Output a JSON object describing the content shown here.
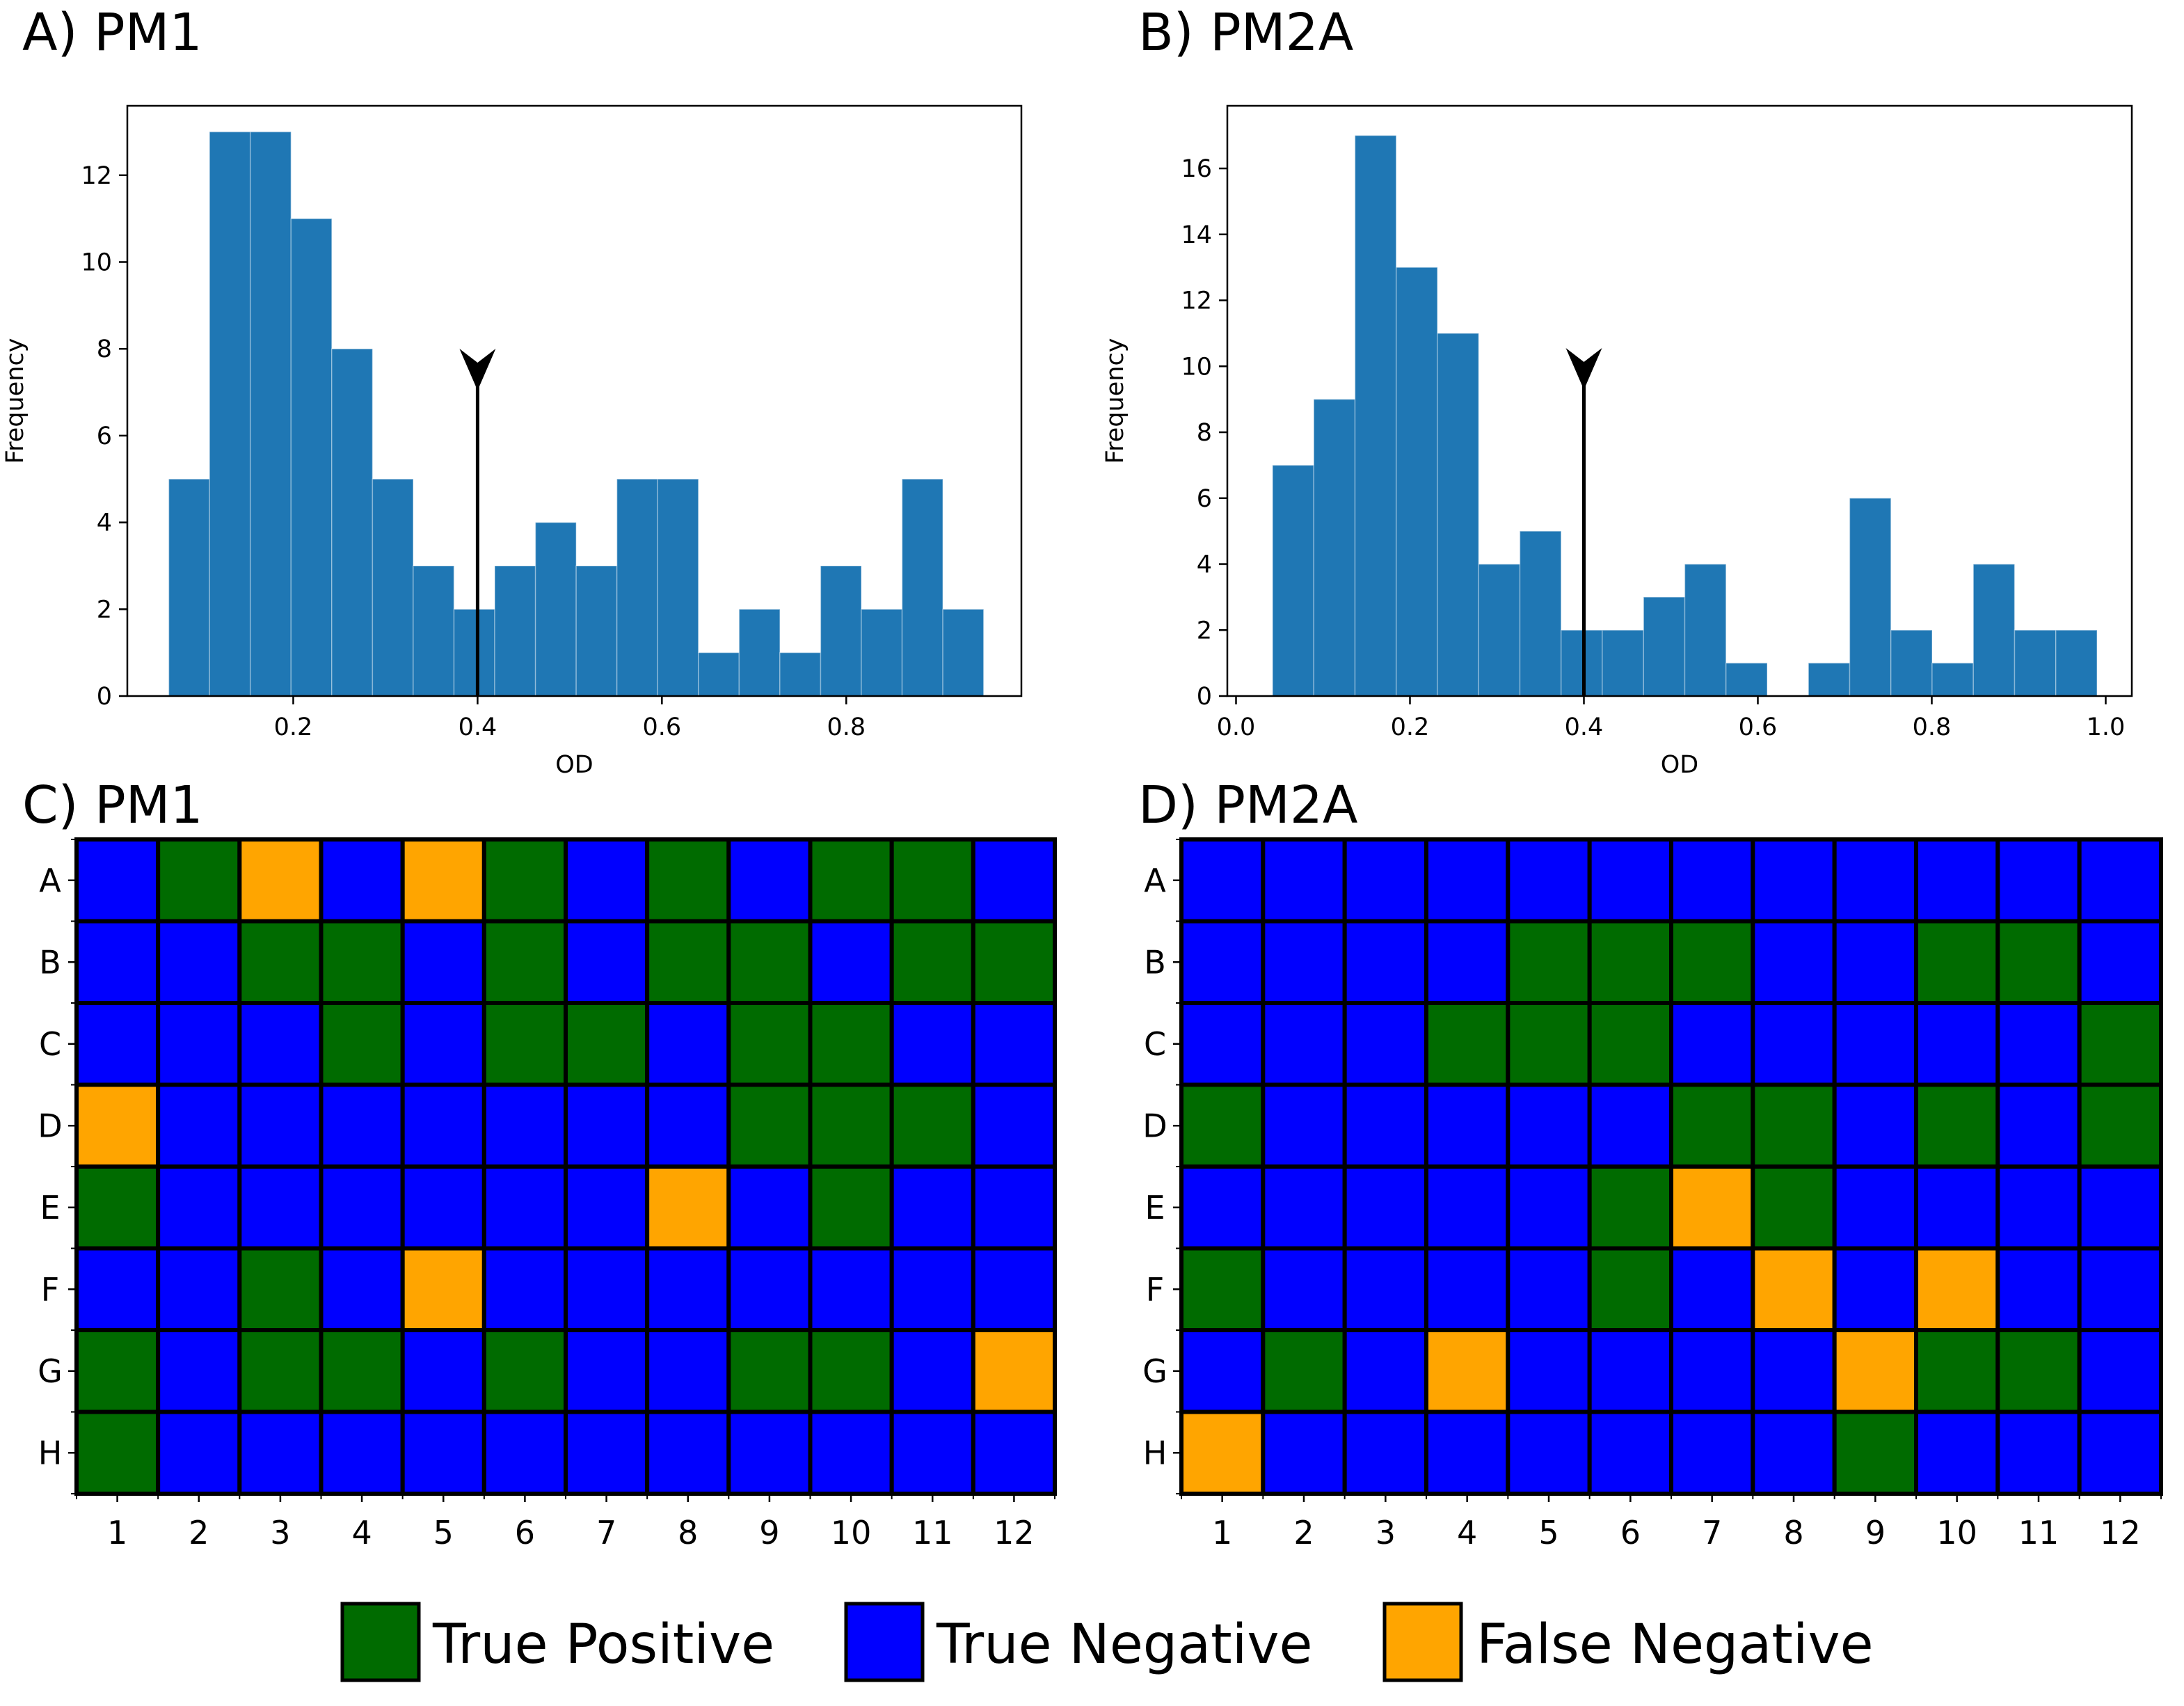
{
  "colors": {
    "bar": "#1f77b4",
    "true_positive": "#006b00",
    "true_negative": "#0000ff",
    "false_negative": "#ffa500",
    "grid_line": "#000000"
  },
  "legend": {
    "items": [
      {
        "label": "True Positive",
        "key": "TP"
      },
      {
        "label": "True Negative",
        "key": "TN"
      },
      {
        "label": "False Negative",
        "key": "FN"
      }
    ]
  },
  "chart_data": [
    {
      "panel": "A) PM1",
      "type": "bar",
      "title": "A) PM1",
      "xlabel": "OD",
      "ylabel": "Frequency",
      "bin_start": 0.065,
      "bin_width": 0.0442,
      "values": [
        5,
        13,
        13,
        11,
        8,
        5,
        3,
        2,
        3,
        4,
        3,
        5,
        5,
        1,
        2,
        1,
        3,
        2,
        5,
        2
      ],
      "xlim": [
        0.02,
        0.99
      ],
      "ylim": [
        0,
        13.6
      ],
      "xticks": [
        0.2,
        0.4,
        0.6,
        0.8
      ],
      "xtick_labels": [
        "0.2",
        "0.4",
        "0.6",
        "0.8"
      ],
      "yticks": [
        0,
        2,
        4,
        6,
        8,
        10,
        12
      ],
      "ytick_labels": [
        "0",
        "2",
        "4",
        "6",
        "8",
        "10",
        "12"
      ],
      "threshold": 0.4,
      "threshold_height": 7.2
    },
    {
      "panel": "B) PM2A",
      "type": "bar",
      "title": "B) PM2A",
      "xlabel": "OD",
      "ylabel": "Frequency",
      "bin_start": 0.042,
      "bin_width": 0.0474,
      "values": [
        7,
        9,
        17,
        13,
        11,
        4,
        5,
        2,
        2,
        3,
        4,
        1,
        0,
        1,
        6,
        2,
        1,
        4,
        2,
        2
      ],
      "xlim": [
        -0.01,
        1.03
      ],
      "ylim": [
        0,
        17.9
      ],
      "xticks": [
        0.0,
        0.2,
        0.4,
        0.6,
        0.8,
        1.0
      ],
      "xtick_labels": [
        "0.0",
        "0.2",
        "0.4",
        "0.6",
        "0.8",
        "1.0"
      ],
      "yticks": [
        0,
        2,
        4,
        6,
        8,
        10,
        12,
        14,
        16
      ],
      "ytick_labels": [
        "0",
        "2",
        "4",
        "6",
        "8",
        "10",
        "12",
        "14",
        "16"
      ],
      "threshold": 0.4,
      "threshold_height": 9.5
    },
    {
      "panel": "C) PM1",
      "type": "heatmap",
      "title": "C) PM1",
      "row_labels": [
        "A",
        "B",
        "C",
        "D",
        "E",
        "F",
        "G",
        "H"
      ],
      "col_labels": [
        "1",
        "2",
        "3",
        "4",
        "5",
        "6",
        "7",
        "8",
        "9",
        "10",
        "11",
        "12"
      ],
      "grid": [
        [
          "TN",
          "TP",
          "FN",
          "TN",
          "FN",
          "TP",
          "TN",
          "TP",
          "TN",
          "TP",
          "TP",
          "TN"
        ],
        [
          "TN",
          "TN",
          "TP",
          "TP",
          "TN",
          "TP",
          "TN",
          "TP",
          "TP",
          "TN",
          "TP",
          "TP"
        ],
        [
          "TN",
          "TN",
          "TN",
          "TP",
          "TN",
          "TP",
          "TP",
          "TN",
          "TP",
          "TP",
          "TN",
          "TN"
        ],
        [
          "FN",
          "TN",
          "TN",
          "TN",
          "TN",
          "TN",
          "TN",
          "TN",
          "TP",
          "TP",
          "TP",
          "TN"
        ],
        [
          "TP",
          "TN",
          "TN",
          "TN",
          "TN",
          "TN",
          "TN",
          "FN",
          "TN",
          "TP",
          "TN",
          "TN"
        ],
        [
          "TN",
          "TN",
          "TP",
          "TN",
          "FN",
          "TN",
          "TN",
          "TN",
          "TN",
          "TN",
          "TN",
          "TN"
        ],
        [
          "TP",
          "TN",
          "TP",
          "TP",
          "TN",
          "TP",
          "TN",
          "TN",
          "TP",
          "TP",
          "TN",
          "FN"
        ],
        [
          "TP",
          "TN",
          "TN",
          "TN",
          "TN",
          "TN",
          "TN",
          "TN",
          "TN",
          "TN",
          "TN",
          "TN"
        ]
      ]
    },
    {
      "panel": "D) PM2A",
      "type": "heatmap",
      "title": "D) PM2A",
      "row_labels": [
        "A",
        "B",
        "C",
        "D",
        "E",
        "F",
        "G",
        "H"
      ],
      "col_labels": [
        "1",
        "2",
        "3",
        "4",
        "5",
        "6",
        "7",
        "8",
        "9",
        "10",
        "11",
        "12"
      ],
      "grid": [
        [
          "TN",
          "TN",
          "TN",
          "TN",
          "TN",
          "TN",
          "TN",
          "TN",
          "TN",
          "TN",
          "TN",
          "TN"
        ],
        [
          "TN",
          "TN",
          "TN",
          "TN",
          "TP",
          "TP",
          "TP",
          "TN",
          "TN",
          "TP",
          "TP",
          "TN"
        ],
        [
          "TN",
          "TN",
          "TN",
          "TP",
          "TP",
          "TP",
          "TN",
          "TN",
          "TN",
          "TN",
          "TN",
          "TP"
        ],
        [
          "TP",
          "TN",
          "TN",
          "TN",
          "TN",
          "TN",
          "TP",
          "TP",
          "TN",
          "TP",
          "TN",
          "TP"
        ],
        [
          "TN",
          "TN",
          "TN",
          "TN",
          "TN",
          "TP",
          "FN",
          "TP",
          "TN",
          "TN",
          "TN",
          "TN"
        ],
        [
          "TP",
          "TN",
          "TN",
          "TN",
          "TN",
          "TP",
          "TN",
          "FN",
          "TN",
          "FN",
          "TN",
          "TN"
        ],
        [
          "TN",
          "TP",
          "TN",
          "FN",
          "TN",
          "TN",
          "TN",
          "TN",
          "FN",
          "TP",
          "TP",
          "TN"
        ],
        [
          "FN",
          "TN",
          "TN",
          "TN",
          "TN",
          "TN",
          "TN",
          "TN",
          "TP",
          "TN",
          "TN",
          "TN"
        ]
      ]
    }
  ]
}
